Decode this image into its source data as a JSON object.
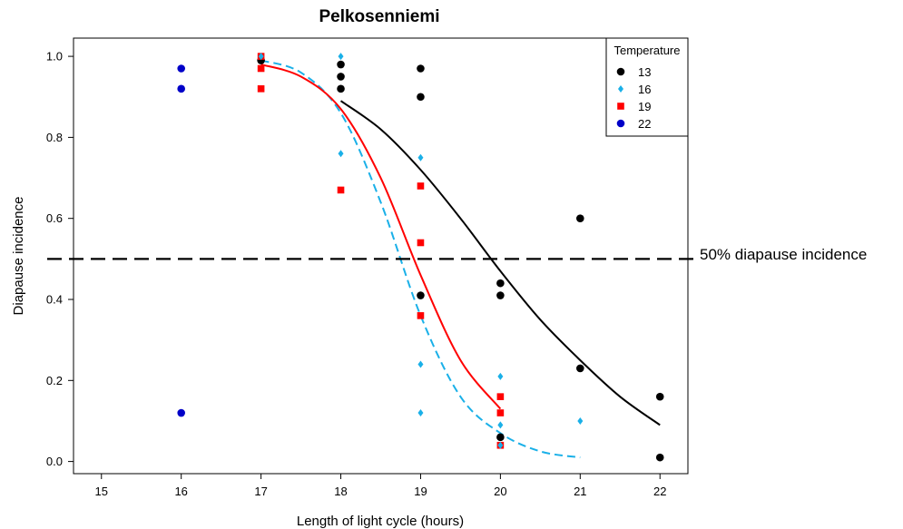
{
  "chart_data": {
    "type": "scatter",
    "title": "Pelkosenniemi",
    "xlabel": "Length of light cycle (hours)",
    "ylabel": "Diapause incidence",
    "xlim": [
      14.65,
      22.35
    ],
    "ylim": [
      -0.03,
      1.045
    ],
    "xticks": [
      15,
      16,
      17,
      18,
      19,
      20,
      21,
      22
    ],
    "yticks": [
      0.0,
      0.2,
      0.4,
      0.6,
      0.8,
      1.0
    ],
    "xtick_labels": [
      "15",
      "16",
      "17",
      "18",
      "19",
      "20",
      "21",
      "22"
    ],
    "ytick_labels": [
      "0.0",
      "0.2",
      "0.4",
      "0.6",
      "0.8",
      "1.0"
    ],
    "grid": false,
    "legend": {
      "title": "Temperature",
      "position": "top-right"
    },
    "reference_line": {
      "y": 0.5,
      "style": "dashed",
      "label": "50% diapause incidence"
    },
    "series": [
      {
        "name": "13",
        "color": "#000000",
        "marker": "circle",
        "points": [
          [
            17,
            0.99
          ],
          [
            18,
            0.98
          ],
          [
            18,
            0.95
          ],
          [
            18,
            0.92
          ],
          [
            19,
            0.97
          ],
          [
            19,
            0.9
          ],
          [
            19,
            0.41
          ],
          [
            20,
            0.44
          ],
          [
            20,
            0.41
          ],
          [
            20,
            0.06
          ],
          [
            21,
            0.6
          ],
          [
            21,
            0.23
          ],
          [
            22,
            0.16
          ],
          [
            22,
            0.01
          ]
        ]
      },
      {
        "name": "16",
        "color": "#1ab0e8",
        "marker": "diamond",
        "points": [
          [
            17,
            1.0
          ],
          [
            18,
            1.0
          ],
          [
            18,
            0.76
          ],
          [
            19,
            0.75
          ],
          [
            19,
            0.24
          ],
          [
            19,
            0.12
          ],
          [
            20,
            0.21
          ],
          [
            20,
            0.09
          ],
          [
            20,
            0.04
          ],
          [
            21,
            0.1
          ]
        ]
      },
      {
        "name": "19",
        "color": "#ff0000",
        "marker": "square",
        "points": [
          [
            17,
            1.0
          ],
          [
            17,
            0.97
          ],
          [
            17,
            0.92
          ],
          [
            18,
            0.67
          ],
          [
            19,
            0.68
          ],
          [
            19,
            0.54
          ],
          [
            19,
            0.36
          ],
          [
            20,
            0.16
          ],
          [
            20,
            0.12
          ],
          [
            20,
            0.04
          ]
        ]
      },
      {
        "name": "22",
        "color": "#0000c8",
        "marker": "circle",
        "points": [
          [
            16,
            0.97
          ],
          [
            16,
            0.92
          ],
          [
            16,
            0.12
          ]
        ]
      }
    ],
    "curves": [
      {
        "series": "13",
        "color": "#000000",
        "style": "solid",
        "points": [
          [
            18,
            0.89
          ],
          [
            18.5,
            0.82
          ],
          [
            19,
            0.72
          ],
          [
            19.5,
            0.6
          ],
          [
            20,
            0.47
          ],
          [
            20.5,
            0.35
          ],
          [
            21,
            0.25
          ],
          [
            21.5,
            0.16
          ],
          [
            22,
            0.09
          ]
        ]
      },
      {
        "series": "16",
        "color": "#1ab0e8",
        "style": "dashed",
        "points": [
          [
            17,
            0.99
          ],
          [
            17.5,
            0.96
          ],
          [
            18,
            0.86
          ],
          [
            18.5,
            0.64
          ],
          [
            19,
            0.36
          ],
          [
            19.5,
            0.16
          ],
          [
            20,
            0.07
          ],
          [
            20.5,
            0.025
          ],
          [
            21,
            0.01
          ]
        ]
      },
      {
        "series": "19",
        "color": "#ff0000",
        "style": "solid",
        "points": [
          [
            17,
            0.98
          ],
          [
            17.5,
            0.95
          ],
          [
            18,
            0.87
          ],
          [
            18.5,
            0.7
          ],
          [
            19,
            0.46
          ],
          [
            19.5,
            0.25
          ],
          [
            20,
            0.13
          ]
        ]
      }
    ]
  }
}
